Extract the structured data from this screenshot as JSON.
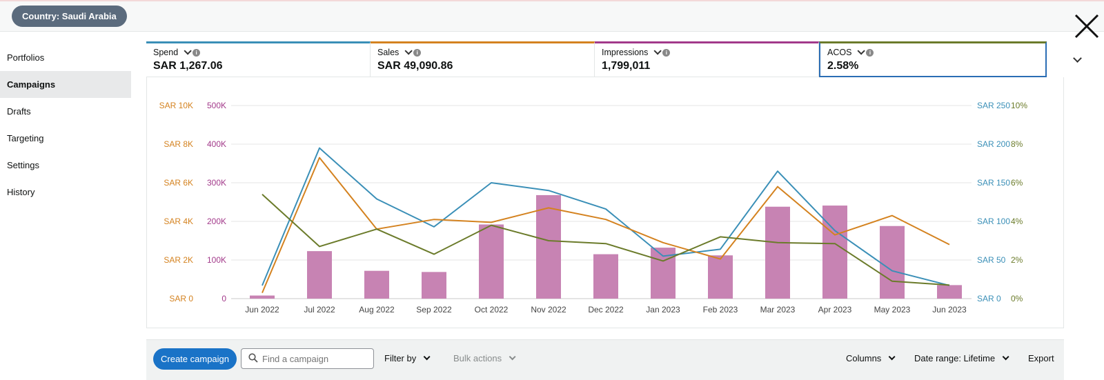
{
  "header": {
    "country_filter": "Country: Saudi Arabia"
  },
  "sidebar": {
    "items": [
      {
        "label": "Portfolios",
        "active": false
      },
      {
        "label": "Campaigns",
        "active": true
      },
      {
        "label": "Drafts",
        "active": false
      },
      {
        "label": "Targeting",
        "active": false
      },
      {
        "label": "Settings",
        "active": false
      },
      {
        "label": "History",
        "active": false
      }
    ]
  },
  "metrics": [
    {
      "label": "Spend",
      "value": "SAR 1,267.06",
      "color": "#3a8fb7"
    },
    {
      "label": "Sales",
      "value": "SAR 49,090.86",
      "color": "#d4821f"
    },
    {
      "label": "Impressions",
      "value": "1,799,011",
      "color": "#a2398a"
    },
    {
      "label": "ACOS",
      "value": "2.58%",
      "color": "#6b7b2a",
      "selected": true
    }
  ],
  "chart_data": {
    "type": "bar+line",
    "categories": [
      "Jun 2022",
      "Jul 2022",
      "Aug 2022",
      "Sep 2022",
      "Oct 2022",
      "Nov 2022",
      "Dec 2022",
      "Jan 2023",
      "Feb 2023",
      "Mar 2023",
      "Apr 2023",
      "May 2023",
      "Jun 2023"
    ],
    "axes": {
      "sales": {
        "ticks": [
          "SAR 0",
          "SAR 2K",
          "SAR 4K",
          "SAR 6K",
          "SAR 8K",
          "SAR 10K"
        ],
        "color": "#d4821f",
        "max": 10000
      },
      "impressions": {
        "ticks": [
          "0",
          "100K",
          "200K",
          "300K",
          "400K",
          "500K"
        ],
        "color": "#a2398a",
        "max": 500000
      },
      "spend": {
        "ticks": [
          "SAR 0",
          "SAR 50",
          "SAR 100",
          "SAR 150",
          "SAR 200",
          "SAR 250"
        ],
        "color": "#3a8fb7",
        "max": 250
      },
      "acos": {
        "ticks": [
          "0%",
          "2%",
          "4%",
          "6%",
          "8%",
          "10%"
        ],
        "color": "#6b7b2a",
        "max": 10
      }
    },
    "series": [
      {
        "name": "Impressions",
        "kind": "bar",
        "axis": "impressions",
        "color": "#c783b3",
        "values": [
          8000,
          123000,
          72000,
          69000,
          192000,
          268000,
          115000,
          132000,
          112000,
          238000,
          241000,
          188000,
          35000
        ]
      },
      {
        "name": "Spend",
        "kind": "line",
        "axis": "spend",
        "color": "#3a8fb7",
        "values": [
          17,
          195,
          129,
          93,
          150,
          140,
          116,
          55,
          64,
          165,
          88,
          36,
          17
        ]
      },
      {
        "name": "Sales",
        "kind": "line",
        "axis": "sales",
        "color": "#d4821f",
        "values": [
          300,
          7300,
          3600,
          4100,
          3950,
          4700,
          4100,
          2900,
          2050,
          5800,
          3300,
          4300,
          2800
        ]
      },
      {
        "name": "ACOS",
        "kind": "line",
        "axis": "acos",
        "color": "#6b7b2a",
        "values": [
          5.4,
          2.7,
          3.6,
          2.3,
          3.8,
          3.0,
          2.85,
          1.95,
          3.2,
          2.9,
          2.85,
          0.9,
          0.7
        ]
      }
    ]
  },
  "toolbar": {
    "create_label": "Create campaign",
    "search_placeholder": "Find a campaign",
    "filter_label": "Filter by",
    "bulk_label": "Bulk actions",
    "columns_label": "Columns",
    "date_range_label": "Date range: Lifetime",
    "export_label": "Export"
  }
}
